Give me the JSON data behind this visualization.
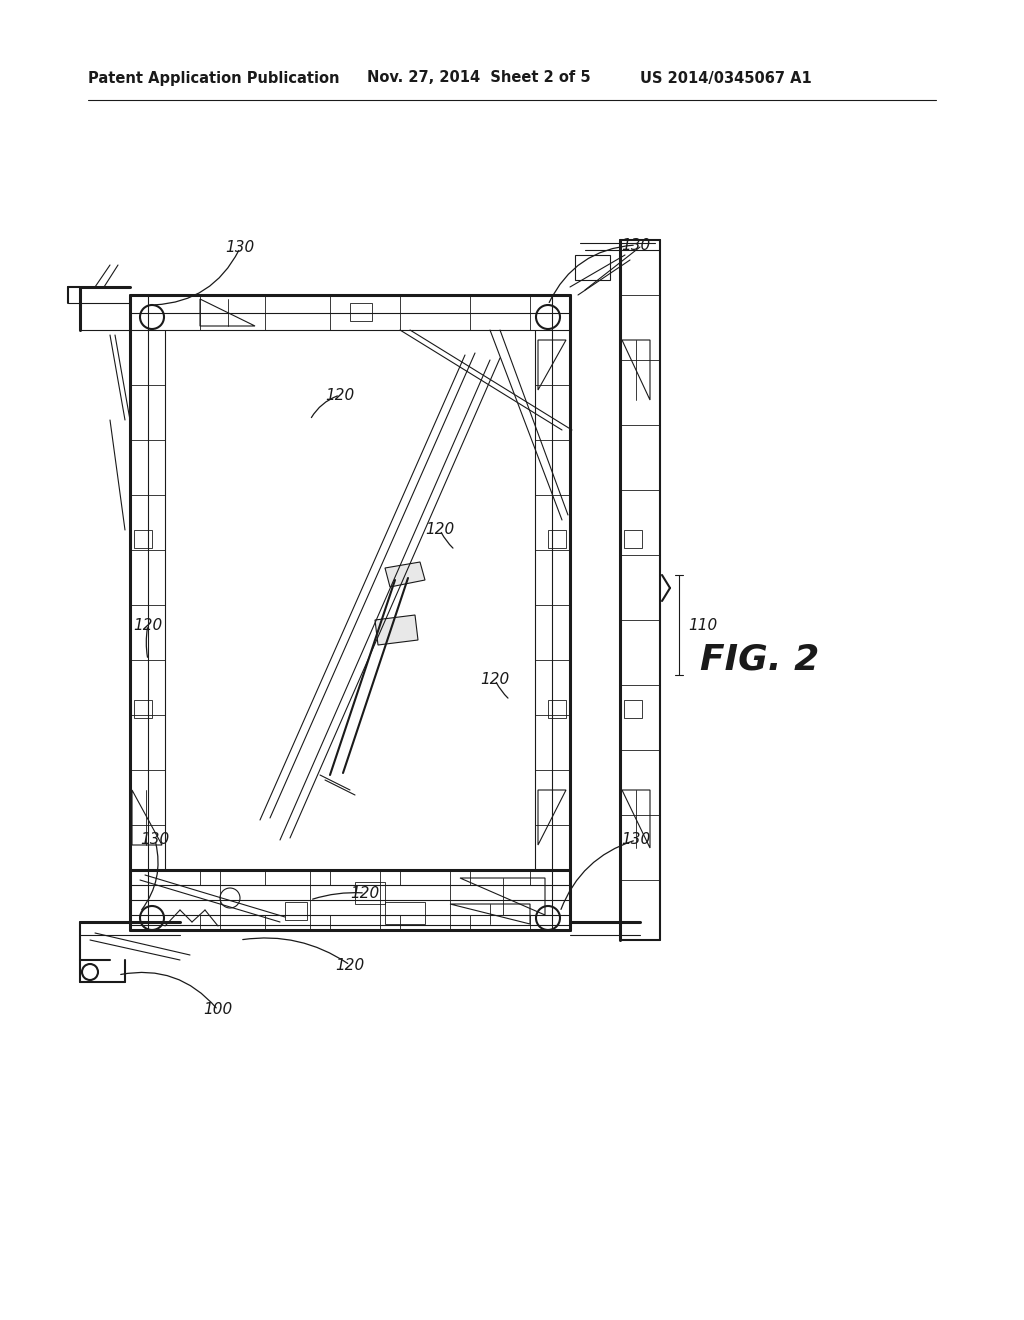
{
  "bg_color": "#ffffff",
  "line_color": "#1a1a1a",
  "header_left": "Patent Application Publication",
  "header_mid": "Nov. 27, 2014  Sheet 2 of 5",
  "header_right": "US 2014/0345067 A1",
  "fig_label": "FIG. 2",
  "lw_thick": 2.2,
  "lw_med": 1.5,
  "lw_thin": 0.8,
  "lw_vt": 0.6
}
